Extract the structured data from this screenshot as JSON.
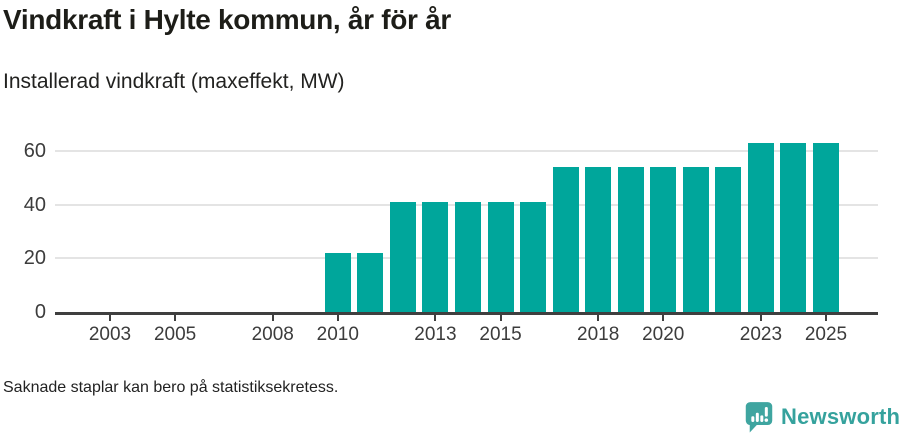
{
  "header": {
    "title": "Vindkraft i Hylte kommun, år för år",
    "subtitle": "Installerad vindkraft (maxeffekt, MW)"
  },
  "chart_data": {
    "type": "bar",
    "title": "Vindkraft i Hylte kommun, år för år",
    "subtitle": "Installerad vindkraft (maxeffekt, MW)",
    "ylabel": "MW",
    "xlabel": "",
    "categories": [
      2002,
      2003,
      2004,
      2005,
      2006,
      2007,
      2008,
      2009,
      2010,
      2011,
      2012,
      2013,
      2014,
      2015,
      2016,
      2017,
      2018,
      2019,
      2020,
      2021,
      2022,
      2023,
      2024,
      2025
    ],
    "values": [
      null,
      null,
      null,
      null,
      null,
      null,
      null,
      null,
      22,
      22,
      41,
      41,
      41,
      41,
      41,
      54,
      54,
      54,
      54,
      54,
      54,
      63,
      63,
      63
    ],
    "ylim": [
      0,
      65
    ],
    "yticks": [
      0,
      20,
      40,
      60
    ],
    "xticks": [
      2003,
      2005,
      2008,
      2010,
      2013,
      2015,
      2018,
      2020,
      2023,
      2025
    ],
    "grid": true,
    "legend": "none",
    "missing_years_note": "Saknade staplar kan bero på statistiksekretess."
  },
  "footer": {
    "note": "Saknade staplar kan bero på statistiksekretess.",
    "brand": "Newsworthy"
  },
  "colors": {
    "bar": "#00a69b",
    "grid": "#e4e4e4",
    "axis": "#3f3f3f",
    "brand": "#35a29d",
    "title_text": "#1d1d18",
    "tick_text": "#3c3c3c"
  }
}
